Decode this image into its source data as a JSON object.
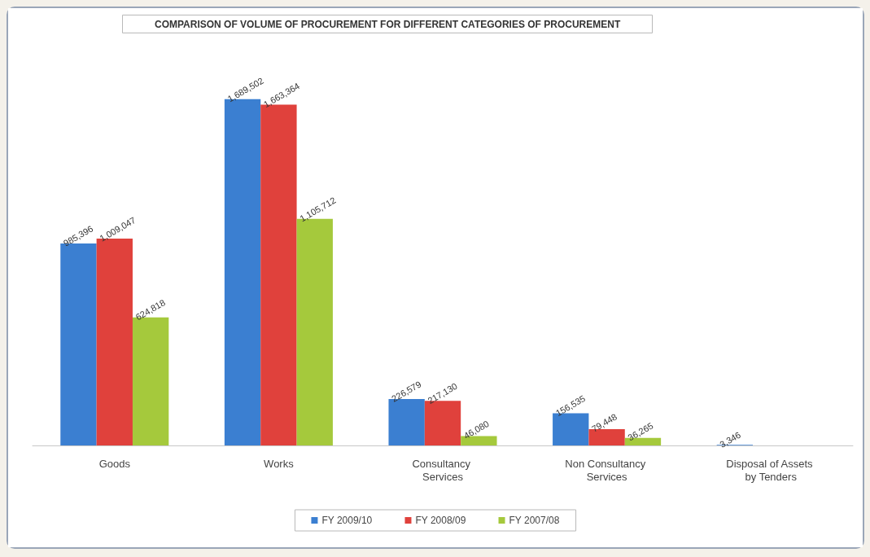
{
  "chart_data": {
    "type": "bar",
    "title": "COMPARISON OF VOLUME OF PROCUREMENT FOR DIFFERENT CATEGORIES OF PROCUREMENT",
    "categories": [
      "Goods",
      "Works",
      "Consultancy Services",
      "Non Consultancy Services",
      "Disposal of Assets by Tenders"
    ],
    "series": [
      {
        "name": "FY 2009/10",
        "color": "#3b7fd1",
        "values": [
          985396,
          1689502,
          226579,
          156535,
          3346
        ],
        "value_labels": [
          "985,396",
          "1,689,502",
          "226,579",
          "156,535",
          "3,346"
        ]
      },
      {
        "name": "FY 2008/09",
        "color": "#e0413c",
        "values": [
          1009047,
          1663364,
          217130,
          79448,
          null
        ],
        "value_labels": [
          "1,009,047",
          "1,663,364",
          "217,130",
          "79,448",
          null
        ]
      },
      {
        "name": "FY 2007/08",
        "color": "#a5c93c",
        "values": [
          624818,
          1105712,
          46080,
          36265,
          null
        ],
        "value_labels": [
          "624,818",
          "1,105,712",
          "46,080",
          "36,265",
          null
        ]
      }
    ],
    "legend": "bottom"
  }
}
